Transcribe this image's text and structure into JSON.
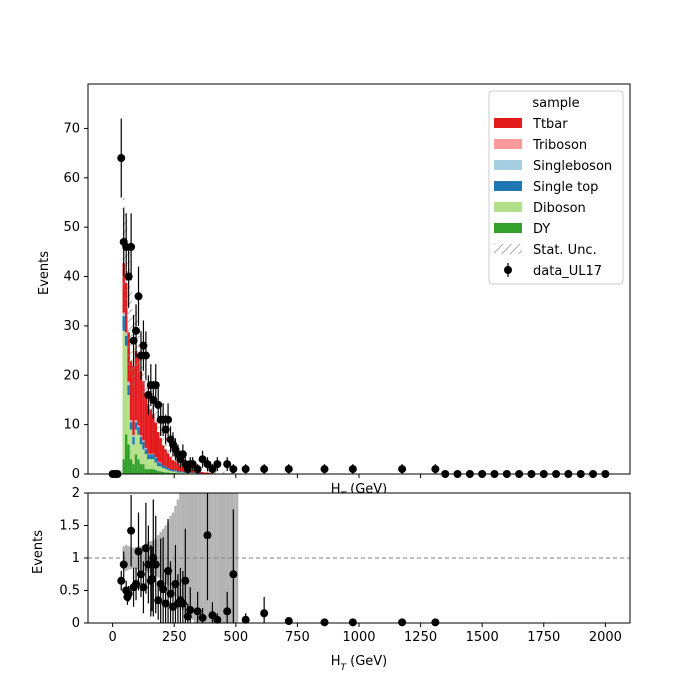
{
  "colors": {
    "Ttbar": "#e31a1c",
    "Triboson": "#fb9a99",
    "Singleboson": "#a6cee3",
    "Single top": "#1f78b4",
    "Diboson": "#b2df8a",
    "DY": "#33a02c",
    "data": "#000000",
    "ratio_unc": "#b3b3b3",
    "reference_line": "#808080"
  },
  "chart_data": [
    {
      "type": "bar",
      "stacked": true,
      "xlabel": "H_T (GeV)",
      "ylabel": "Events",
      "xlim": [
        -100,
        2100
      ],
      "ylim": [
        0,
        79
      ],
      "yticks": [
        0,
        10,
        20,
        30,
        40,
        50,
        60,
        70
      ],
      "legend": {
        "title": "sample",
        "position": "top-right",
        "entries": [
          "Ttbar",
          "Triboson",
          "Singleboson",
          "Single top",
          "Diboson",
          "DY",
          "Stat. Unc.",
          "data_UL17"
        ]
      },
      "bin_width": 10,
      "bins": [
        40,
        50,
        60,
        70,
        80,
        90,
        100,
        110,
        120,
        130,
        140,
        150,
        160,
        170,
        180,
        190,
        200,
        210,
        220,
        230,
        240,
        250,
        260,
        270,
        280,
        290,
        300,
        310,
        320,
        330,
        340,
        350,
        360,
        370,
        380,
        390,
        400,
        410,
        420,
        430,
        440,
        450,
        460,
        470,
        480,
        490,
        500
      ],
      "series": [
        {
          "name": "DY",
          "values": [
            3,
            8,
            6,
            3,
            2,
            4,
            3,
            2,
            2,
            1,
            1,
            1,
            1,
            0.8,
            0.6,
            0.5,
            0.4,
            0.3,
            0.3,
            0.2,
            0.2,
            0.2,
            0.1,
            0.1,
            0.1,
            0.1,
            0.1,
            0.1,
            0.1,
            0.1,
            0,
            0,
            0,
            0,
            0,
            0,
            0,
            0,
            0,
            0,
            0,
            0,
            0,
            0,
            0,
            0,
            0
          ]
        },
        {
          "name": "Diboson",
          "values": [
            26,
            18,
            10,
            6,
            4,
            5,
            5,
            4,
            3,
            3,
            2,
            2,
            2,
            1.5,
            1,
            1,
            0.8,
            0.7,
            0.5,
            0.4,
            0.3,
            0.3,
            0.2,
            0.2,
            0.2,
            0.1,
            0.1,
            0.1,
            0.1,
            0.1,
            0.1,
            0.1,
            0,
            0,
            0,
            0,
            0,
            0,
            0,
            0,
            0,
            0,
            0,
            0,
            0,
            0,
            0
          ]
        },
        {
          "name": "Single top",
          "values": [
            3,
            2,
            2,
            1.5,
            1.5,
            1.5,
            1.5,
            1.5,
            1.5,
            1,
            1,
            1,
            1,
            1,
            0.8,
            0.7,
            0.6,
            0.5,
            0.4,
            0.4,
            0.3,
            0.3,
            0.3,
            0.2,
            0.2,
            0.2,
            0.2,
            0.1,
            0.1,
            0.1,
            0.1,
            0.1,
            0.1,
            0.1,
            0.1,
            0,
            0,
            0,
            0,
            0,
            0,
            0,
            0,
            0,
            0,
            0,
            0
          ]
        },
        {
          "name": "Singleboson",
          "values": [
            0.5,
            0.5,
            0.5,
            0.3,
            0.3,
            0.3,
            0.2,
            0.2,
            0.2,
            0.2,
            0.1,
            0.1,
            0.1,
            0.1,
            0.1,
            0.1,
            0,
            0,
            0,
            0,
            0,
            0,
            0,
            0,
            0,
            0,
            0,
            0,
            0,
            0,
            0,
            0,
            0,
            0,
            0,
            0,
            0,
            0,
            0,
            0,
            0,
            0,
            0,
            0,
            0,
            0,
            0
          ]
        },
        {
          "name": "Triboson",
          "values": [
            0.2,
            0.2,
            0.2,
            0.1,
            0.1,
            0.1,
            0.1,
            0.1,
            0.1,
            0.1,
            0,
            0,
            0,
            0,
            0,
            0,
            0,
            0,
            0,
            0,
            0,
            0,
            0,
            0,
            0,
            0,
            0,
            0,
            0,
            0,
            0,
            0,
            0,
            0,
            0,
            0,
            0,
            0,
            0,
            0,
            0,
            0,
            0,
            0,
            0,
            0,
            0
          ]
        },
        {
          "name": "Ttbar",
          "values": [
            10,
            10,
            10,
            12,
            14,
            14,
            14,
            13,
            12,
            11,
            10,
            9,
            8,
            7,
            6,
            5,
            4,
            3.5,
            3,
            2.5,
            2,
            1.8,
            1.5,
            1.2,
            1,
            0.9,
            0.8,
            0.6,
            0.5,
            0.4,
            0.4,
            0.3,
            0.3,
            0.2,
            0.2,
            0.2,
            0.1,
            0.1,
            0.1,
            0.1,
            0.1,
            0.1,
            0.1,
            0,
            0,
            0,
            0
          ]
        }
      ],
      "stat_unc": [
        [
          38,
          56
        ],
        [
          32,
          53
        ],
        [
          22,
          46
        ],
        [
          20,
          38
        ],
        [
          18,
          33
        ],
        [
          21,
          33
        ],
        [
          20,
          31
        ],
        [
          18,
          28
        ],
        [
          16,
          22
        ],
        [
          15,
          20
        ],
        [
          13,
          18
        ],
        [
          12,
          17
        ],
        [
          11,
          15
        ],
        [
          10,
          13
        ],
        [
          8,
          11
        ],
        [
          7,
          9
        ],
        [
          5.5,
          8
        ],
        [
          4.5,
          7
        ],
        [
          4,
          6
        ],
        [
          3.3,
          5
        ],
        [
          2.7,
          4
        ],
        [
          2.3,
          3.5
        ],
        [
          1.8,
          3
        ],
        [
          1.4,
          2.5
        ],
        [
          1.2,
          2.2
        ],
        [
          1,
          2
        ],
        [
          0.9,
          1.8
        ],
        [
          0.7,
          1.6
        ],
        [
          0.6,
          1.4
        ],
        [
          0.5,
          1.2
        ],
        [
          0.4,
          1.1
        ],
        [
          0.3,
          1
        ],
        [
          0.3,
          0.9
        ],
        [
          0.2,
          0.8
        ],
        [
          0.2,
          0.8
        ],
        [
          0.1,
          0.7
        ],
        [
          0.1,
          0.6
        ],
        [
          0.1,
          0.6
        ],
        [
          0.05,
          0.6
        ],
        [
          0.05,
          0.6
        ],
        [
          0.05,
          0.6
        ],
        [
          0.05,
          0.5
        ],
        [
          0.05,
          0.5
        ],
        [
          0,
          0.5
        ],
        [
          0,
          0.5
        ],
        [
          0,
          0.5
        ],
        [
          0,
          0.5
        ]
      ],
      "data_UL17": {
        "x": [
          0,
          10,
          20,
          35,
          45,
          55,
          65,
          75,
          85,
          95,
          105,
          115,
          125,
          135,
          145,
          155,
          165,
          175,
          185,
          195,
          205,
          215,
          225,
          235,
          245,
          255,
          265,
          275,
          285,
          295,
          305,
          315,
          325,
          345,
          365,
          385,
          405,
          425,
          465,
          490,
          540,
          615,
          715,
          860,
          975,
          1175,
          1310,
          1350,
          1400,
          1450,
          1500,
          1550,
          1600,
          1650,
          1700,
          1750,
          1800,
          1850,
          1900,
          1950,
          2000
        ],
        "y": [
          0,
          0,
          0,
          64,
          47,
          46,
          40,
          46,
          27,
          29,
          36,
          24,
          26,
          24,
          16,
          18,
          15,
          18,
          14,
          11,
          11,
          9,
          11,
          7,
          6,
          5,
          4,
          3,
          4,
          2,
          1,
          2,
          2,
          1,
          3,
          2,
          1,
          2,
          2,
          1,
          1,
          1,
          1,
          1,
          1,
          1,
          1,
          0,
          0,
          0,
          0,
          0,
          0,
          0,
          0,
          0,
          0,
          0,
          0,
          0,
          0
        ]
      }
    },
    {
      "type": "scatter",
      "xlabel": "H_T (GeV)",
      "ylabel": "Events",
      "xlim": [
        -100,
        2100
      ],
      "ylim": [
        0,
        2
      ],
      "xticks": [
        0,
        250,
        500,
        750,
        1000,
        1250,
        1500,
        1750,
        2000
      ],
      "yticks": [
        0,
        0.5,
        1,
        1.5,
        2
      ],
      "reference_line": 1,
      "unc_band": [
        [
          0.82,
          1.18
        ],
        [
          0.8,
          1.2
        ],
        [
          0.82,
          1.18
        ],
        [
          0.83,
          1.17
        ],
        [
          0.84,
          1.16
        ],
        [
          0.83,
          1.17
        ],
        [
          0.82,
          1.18
        ],
        [
          0.82,
          1.18
        ],
        [
          0.8,
          1.2
        ],
        [
          0.8,
          1.22
        ],
        [
          0.78,
          1.25
        ],
        [
          0.76,
          1.26
        ],
        [
          0.75,
          1.27
        ],
        [
          0.72,
          1.3
        ],
        [
          0.7,
          1.35
        ],
        [
          0.68,
          1.4
        ],
        [
          0.62,
          1.45
        ],
        [
          0.6,
          1.5
        ],
        [
          0.58,
          1.55
        ],
        [
          0.5,
          1.65
        ],
        [
          0.45,
          1.7
        ],
        [
          0.4,
          1.8
        ],
        [
          0.3,
          1.9
        ],
        [
          0.25,
          2.0
        ],
        [
          0.2,
          2.0
        ],
        [
          0.15,
          2.0
        ],
        [
          0.1,
          2.0
        ],
        [
          0.1,
          2.0
        ],
        [
          0.05,
          2.0
        ],
        [
          0,
          2.0
        ],
        [
          0,
          2.0
        ],
        [
          0,
          2.0
        ],
        [
          0,
          2.0
        ],
        [
          0,
          2.0
        ],
        [
          0,
          2.0
        ],
        [
          0,
          2.0
        ],
        [
          0,
          2.0
        ],
        [
          0,
          2.0
        ],
        [
          0,
          2.0
        ],
        [
          0,
          2.0
        ],
        [
          0,
          2.0
        ],
        [
          0,
          2.0
        ],
        [
          0,
          2.0
        ],
        [
          0,
          2.0
        ],
        [
          0,
          2.0
        ],
        [
          0,
          2.0
        ],
        [
          0,
          2.0
        ]
      ],
      "points": {
        "x": [
          35,
          45,
          55,
          60,
          65,
          75,
          85,
          95,
          105,
          115,
          125,
          135,
          145,
          155,
          160,
          165,
          175,
          185,
          195,
          205,
          215,
          225,
          235,
          245,
          255,
          265,
          275,
          285,
          295,
          305,
          315,
          345,
          365,
          385,
          405,
          425,
          465,
          490,
          540,
          615,
          715,
          860,
          975,
          1175,
          1310
        ],
        "y": [
          0.65,
          0.9,
          0.5,
          0.4,
          0.45,
          1.42,
          0.55,
          0.6,
          1.1,
          0.75,
          0.55,
          1.15,
          0.9,
          0.65,
          0.68,
          1.0,
          0.9,
          0.35,
          0.6,
          0.52,
          0.3,
          0.8,
          0.45,
          0.25,
          0.6,
          0.3,
          0.35,
          0.3,
          0.65,
          0.1,
          0.2,
          0.18,
          0.08,
          1.35,
          0.12,
          0.05,
          0.18,
          0.75,
          0.05,
          0.15,
          0.03,
          0.01,
          0.01,
          0.01,
          0.01
        ],
        "err": [
          0.15,
          0.2,
          0.15,
          0.12,
          0.12,
          0.55,
          0.3,
          0.25,
          0.6,
          0.35,
          0.4,
          0.7,
          0.6,
          0.55,
          0.5,
          0.9,
          0.75,
          0.3,
          0.7,
          0.8,
          0.45,
          0.8,
          0.5,
          0.35,
          0.6,
          0.45,
          0.5,
          0.5,
          0.8,
          0.2,
          0.35,
          0.3,
          0.15,
          1.0,
          0.2,
          0.1,
          0.3,
          1.0,
          0.1,
          0.25,
          0.05,
          0.02,
          0.02,
          0.02,
          0.02
        ]
      }
    }
  ]
}
